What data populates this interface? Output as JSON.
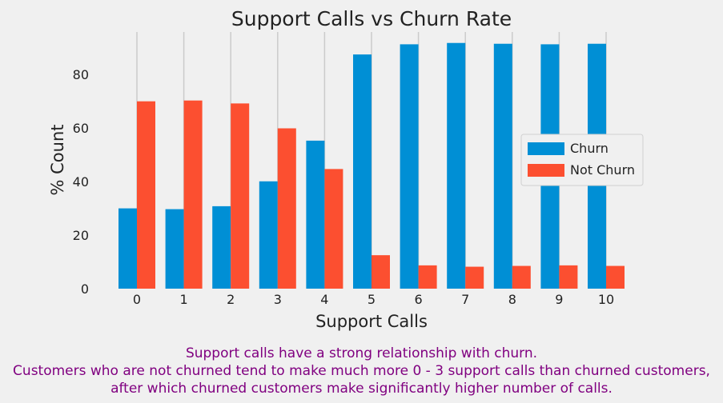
{
  "chart_data": {
    "type": "bar",
    "title": "Support Calls vs Churn Rate",
    "xlabel": "Support Calls",
    "ylabel": "% Count",
    "categories": [
      "0",
      "1",
      "2",
      "3",
      "4",
      "5",
      "6",
      "7",
      "8",
      "9",
      "10"
    ],
    "series": [
      {
        "name": "Churn",
        "color": "#008fd5",
        "values": [
          30,
          29.7,
          30.8,
          40.1,
          55.3,
          87.5,
          91.3,
          91.8,
          91.5,
          91.3,
          91.5
        ]
      },
      {
        "name": "Not Churn",
        "color": "#fc4f30",
        "values": [
          70,
          70.3,
          69.2,
          59.9,
          44.7,
          12.5,
          8.7,
          8.2,
          8.5,
          8.7,
          8.5
        ]
      }
    ],
    "ylim": [
      0,
      95.9
    ],
    "yticks": [
      0,
      20,
      40,
      60,
      80
    ],
    "grid": "x",
    "legend_position": "center-right"
  },
  "caption": {
    "line1": "Support calls have a strong relationship with churn.",
    "line2": "Customers who are not churned tend to make much more 0 - 3 support calls than churned customers,",
    "line3": "after which churned customers make significantly higher number of calls."
  }
}
